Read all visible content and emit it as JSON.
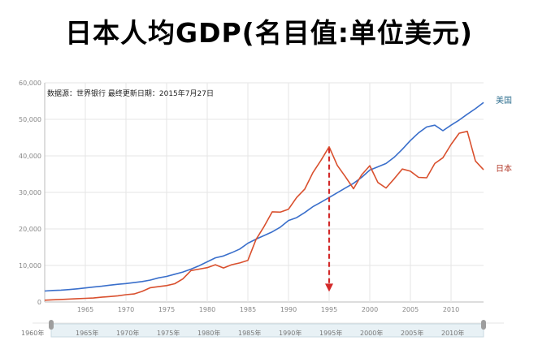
{
  "page_title": "日本人均GDP(名目值:单位美元)",
  "chart_data": {
    "type": "line",
    "note": "数据源：世界银行   最终更新日期：2015年7月27日",
    "y_ticks": [
      "0",
      "10,000",
      "20,000",
      "30,000",
      "40,000",
      "50,000",
      "60,000"
    ],
    "ylim": [
      0,
      60000
    ],
    "xlim": [
      1960,
      2014
    ],
    "x_ticks": [
      "1965",
      "1970",
      "1975",
      "1980",
      "1985",
      "1990",
      "1995",
      "2000",
      "2005",
      "2010"
    ],
    "x": [
      1960,
      1961,
      1962,
      1963,
      1964,
      1965,
      1966,
      1967,
      1968,
      1969,
      1970,
      1971,
      1972,
      1973,
      1974,
      1975,
      1976,
      1977,
      1978,
      1979,
      1980,
      1981,
      1982,
      1983,
      1984,
      1985,
      1986,
      1987,
      1988,
      1989,
      1990,
      1991,
      1992,
      1993,
      1994,
      1995,
      1996,
      1997,
      1998,
      1999,
      2000,
      2001,
      2002,
      2003,
      2004,
      2005,
      2006,
      2007,
      2008,
      2009,
      2010,
      2011,
      2012,
      2013,
      2014
    ],
    "series": [
      {
        "name": "美国",
        "color": "#3a6fcb",
        "label_color": "#2f6f8f",
        "values": [
          3000,
          3150,
          3250,
          3400,
          3600,
          3850,
          4100,
          4300,
          4600,
          4850,
          5050,
          5300,
          5600,
          6000,
          6600,
          7000,
          7600,
          8200,
          9000,
          9900,
          11000,
          12100,
          12600,
          13500,
          14500,
          16100,
          17200,
          18200,
          19200,
          20500,
          22300,
          23100,
          24500,
          26100,
          27300,
          28600,
          29900,
          31200,
          32500,
          34100,
          36100,
          37000,
          37900,
          39600,
          41800,
          44200,
          46300,
          47900,
          48400,
          46900,
          48400,
          49800,
          51400,
          52900,
          54600
        ]
      },
      {
        "name": "日本",
        "color": "#d9502e",
        "label_color": "#b33a2a",
        "values": [
          500,
          600,
          700,
          800,
          900,
          1000,
          1100,
          1300,
          1500,
          1700,
          2000,
          2200,
          2900,
          3900,
          4200,
          4500,
          5000,
          6300,
          8600,
          9000,
          9400,
          10200,
          9300,
          10200,
          10700,
          11400,
          17100,
          20700,
          24700,
          24600,
          25400,
          28600,
          30900,
          35400,
          38800,
          42500,
          37400,
          34300,
          31000,
          34800,
          37300,
          32700,
          31200,
          33700,
          36400,
          35800,
          34100,
          34000,
          37900,
          39500,
          43100,
          46200,
          46700,
          38600,
          36200
        ]
      }
    ],
    "annotation": {
      "type": "dashed-arrow",
      "x": 1995,
      "from_value": 42500,
      "to_value": 2800,
      "color": "#d32a2a"
    }
  },
  "range_selector": {
    "labels": [
      "1960年",
      "1965年",
      "1970年",
      "1975年",
      "1980年",
      "1985年",
      "1990年",
      "1995年",
      "2000年",
      "2005年",
      "2010年"
    ]
  },
  "colors": {
    "grid": "#e6e6e6",
    "axis": "#bbbbbb",
    "slider_fill": "#e8f1f5",
    "slider_border": "#c9d9e1"
  }
}
